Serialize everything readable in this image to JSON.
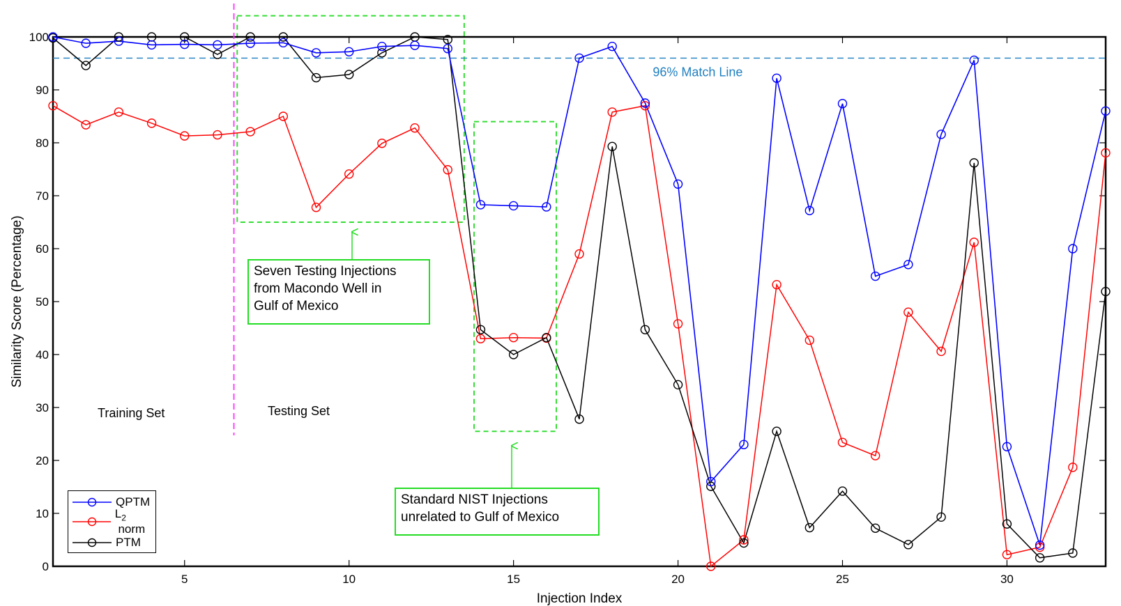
{
  "chart_data": {
    "type": "line",
    "xlabel": "Injection Index",
    "ylabel": "Similarity Score (Percentage)",
    "xlim": [
      1,
      33
    ],
    "ylim": [
      0,
      100
    ],
    "x_ticks": [
      5,
      10,
      15,
      20,
      25,
      30
    ],
    "y_ticks": [
      0,
      10,
      20,
      30,
      40,
      50,
      60,
      70,
      80,
      90,
      100
    ],
    "x": [
      1,
      2,
      3,
      4,
      5,
      6,
      7,
      8,
      9,
      10,
      11,
      12,
      13,
      14,
      15,
      16,
      17,
      18,
      19,
      20,
      21,
      22,
      23,
      24,
      25,
      26,
      27,
      28,
      29,
      30,
      31,
      32,
      33
    ],
    "series": [
      {
        "name": "QPTM",
        "color": "#0000ff",
        "values": [
          100,
          98.8,
          99.2,
          98.5,
          98.6,
          98.5,
          98.8,
          98.9,
          97,
          97.2,
          98.2,
          98.4,
          97.8,
          68.3,
          68.1,
          67.9,
          96,
          98.2,
          87.5,
          72.2,
          16,
          23,
          92.2,
          67.2,
          87.4,
          54.8,
          57,
          81.6,
          95.6,
          22.6,
          4,
          60,
          86
        ]
      },
      {
        "name": "L2 norm",
        "color": "#ff0000",
        "values": [
          87,
          83.4,
          85.8,
          83.7,
          81.3,
          81.5,
          82.1,
          85,
          67.8,
          74.1,
          79.9,
          82.8,
          74.9,
          43,
          43.2,
          43.1,
          59,
          85.8,
          87,
          45.8,
          0,
          5,
          53.2,
          42.7,
          23.4,
          20.9,
          48,
          40.6,
          61.2,
          2.2,
          3.6,
          18.7,
          78.1
        ]
      },
      {
        "name": "PTM",
        "color": "#000000",
        "values": [
          99.8,
          94.6,
          100,
          100,
          100,
          96.7,
          100,
          100,
          92.3,
          92.9,
          97,
          100,
          99.5,
          44.7,
          40,
          43.2,
          27.8,
          79.3,
          44.7,
          34.3,
          15.1,
          4.4,
          25.5,
          7.3,
          14.2,
          7.2,
          4.1,
          9.3,
          76.2,
          8,
          1.6,
          2.5,
          51.9
        ]
      }
    ],
    "match_line": {
      "value": 96,
      "label": "96% Match Line",
      "color": "#1f7fc0"
    },
    "divider": {
      "x": 6.5,
      "color": "#ff33ff"
    },
    "regions": [
      {
        "x_range": [
          6.6,
          13.5
        ],
        "y_range": [
          65,
          104
        ],
        "color": "#33dd33"
      },
      {
        "x_range": [
          13.8,
          16.3
        ],
        "y_range": [
          25.5,
          84
        ],
        "color": "#33dd33"
      }
    ],
    "annotations": [
      {
        "text": "Seven Testing Injections from Macondo Well in Gulf of Mexico",
        "lines": [
          "Seven Testing Injections",
          "from Macondo Well in",
          "Gulf of Mexico"
        ]
      },
      {
        "text": "Standard NIST Injections unrelated to Gulf of Mexico",
        "lines": [
          "Standard NIST Injections",
          "unrelated to Gulf of Mexico"
        ]
      }
    ],
    "set_labels": [
      "Training Set",
      "Testing Set"
    ],
    "legend": {
      "placement": "bottom-left",
      "entries": [
        "QPTM",
        "L2 norm",
        "PTM"
      ]
    }
  },
  "legend": {
    "qptm": "QPTM",
    "l2_main": "L",
    "l2_sub": "2",
    "l2_rest": " norm",
    "ptm": "PTM"
  }
}
